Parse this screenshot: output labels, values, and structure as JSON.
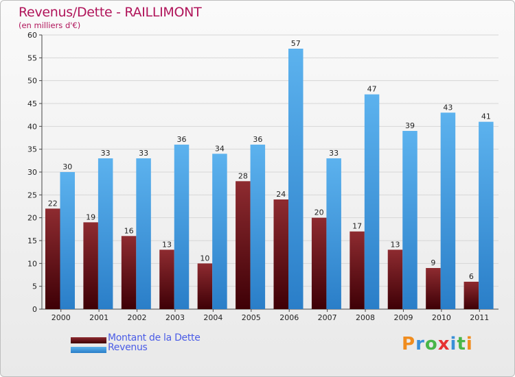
{
  "header": {
    "title": "Revenus/Dette - RAILLIMONT",
    "subtitle": "(en milliers d'€)"
  },
  "chart_data": {
    "type": "bar",
    "title": "Revenus/Dette - RAILLIMONT",
    "ylabel": "(en milliers d'€)",
    "xlabel": "",
    "categories": [
      "2000",
      "2001",
      "2002",
      "2003",
      "2004",
      "2005",
      "2006",
      "2007",
      "2008",
      "2009",
      "2010",
      "2011"
    ],
    "series": [
      {
        "name": "Montant de la Dette",
        "color": "#7a1a1e",
        "values": [
          22,
          19,
          16,
          13,
          10,
          28,
          24,
          20,
          17,
          13,
          9,
          6
        ]
      },
      {
        "name": "Revenus",
        "color": "#4ea6e6",
        "values": [
          30,
          33,
          33,
          36,
          34,
          36,
          57,
          33,
          47,
          39,
          43,
          41
        ]
      }
    ],
    "ylim": [
      0,
      60
    ],
    "yticks": [
      "0",
      "5",
      "10",
      "15",
      "20",
      "25",
      "30",
      "35",
      "40",
      "45",
      "50",
      "55",
      "60"
    ],
    "grid": true,
    "legend": "bottom-left"
  },
  "legend": {
    "dette_label": "Montant de la Dette",
    "revenus_label": "Revenus"
  },
  "brand": {
    "logo_letters": [
      "P",
      "r",
      "o",
      "x",
      "i",
      "t",
      "i"
    ],
    "logo_colors": [
      "#f08c1e",
      "#3a8fd8",
      "#49b648",
      "#e63232",
      "#3a8fd8",
      "#49b648",
      "#f08c1e"
    ]
  }
}
